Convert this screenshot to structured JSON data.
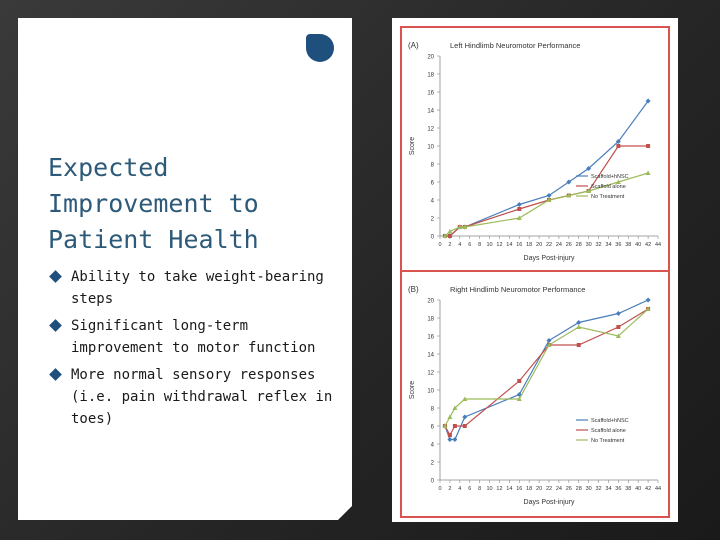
{
  "slide": {
    "title": "Expected Improvement to Patient Health",
    "bullets": [
      "Ability to take weight-bearing steps",
      "Significant long-term improvement to motor function",
      "More normal sensory responses (i.e. pain withdrawal reflex in toes)"
    ],
    "colors": {
      "title": "#2d5a78",
      "accent": "#1f4f7d",
      "panel_border": "#d9534f"
    }
  },
  "chart_data": [
    {
      "type": "line",
      "panel": "(A)",
      "title": "Left Hindlimb Neuromotor Performance",
      "xlabel": "Days Post-injury",
      "ylabel": "Score",
      "xticks": [
        0,
        2,
        4,
        6,
        8,
        10,
        12,
        14,
        16,
        18,
        20,
        22,
        24,
        26,
        28,
        30,
        32,
        34,
        36,
        38,
        40,
        42,
        44
      ],
      "yticks": [
        0,
        2,
        4,
        6,
        8,
        10,
        12,
        14,
        16,
        18,
        20
      ],
      "xlim": [
        0,
        44
      ],
      "ylim": [
        0,
        20
      ],
      "legend_position": "bottom-right",
      "series": [
        {
          "name": "Scaffold+hNSC",
          "color": "#4a7ebb",
          "marker": "diamond",
          "x": [
            1,
            2,
            4,
            5,
            16,
            22,
            26,
            30,
            36,
            42
          ],
          "y": [
            0,
            0,
            1,
            1,
            3.5,
            4.5,
            6,
            7.5,
            10.5,
            15
          ]
        },
        {
          "name": "Scaffold alone",
          "color": "#c0504d",
          "marker": "square",
          "x": [
            1,
            2,
            4,
            5,
            16,
            22,
            26,
            30,
            36,
            42
          ],
          "y": [
            0,
            0,
            1,
            1,
            3,
            4,
            4.5,
            5,
            10,
            10
          ]
        },
        {
          "name": "No Treatment",
          "color": "#9bbb59",
          "marker": "triangle",
          "x": [
            1,
            2,
            4,
            5,
            16,
            22,
            26,
            30,
            36,
            42
          ],
          "y": [
            0,
            0.5,
            1,
            1,
            2,
            4,
            4.5,
            5,
            6,
            7
          ]
        }
      ]
    },
    {
      "type": "line",
      "panel": "(B)",
      "title": "Right Hindlimb Neuromotor Performance",
      "xlabel": "Days Post-injury",
      "ylabel": "Score",
      "xticks": [
        0,
        2,
        4,
        6,
        8,
        10,
        12,
        14,
        16,
        18,
        20,
        22,
        24,
        26,
        28,
        30,
        32,
        34,
        36,
        38,
        40,
        42,
        44
      ],
      "yticks": [
        0,
        2,
        4,
        6,
        8,
        10,
        12,
        14,
        16,
        18,
        20
      ],
      "xlim": [
        0,
        44
      ],
      "ylim": [
        0,
        20
      ],
      "legend_position": "bottom-right",
      "series": [
        {
          "name": "Scaffold+hNSC",
          "color": "#4a7ebb",
          "marker": "diamond",
          "x": [
            1,
            2,
            3,
            5,
            16,
            22,
            28,
            36,
            42
          ],
          "y": [
            6,
            4.5,
            4.5,
            7,
            9.5,
            15.5,
            17.5,
            18.5,
            20
          ]
        },
        {
          "name": "Scaffold alone",
          "color": "#c0504d",
          "marker": "square",
          "x": [
            1,
            2,
            3,
            5,
            16,
            22,
            28,
            36,
            42
          ],
          "y": [
            6,
            5,
            6,
            6,
            11,
            15,
            15,
            17,
            19
          ]
        },
        {
          "name": "No Treatment",
          "color": "#9bbb59",
          "marker": "triangle",
          "x": [
            1,
            2,
            3,
            5,
            16,
            22,
            28,
            36,
            42
          ],
          "y": [
            6,
            7,
            8,
            9,
            9,
            15,
            17,
            16,
            19
          ]
        }
      ]
    }
  ]
}
